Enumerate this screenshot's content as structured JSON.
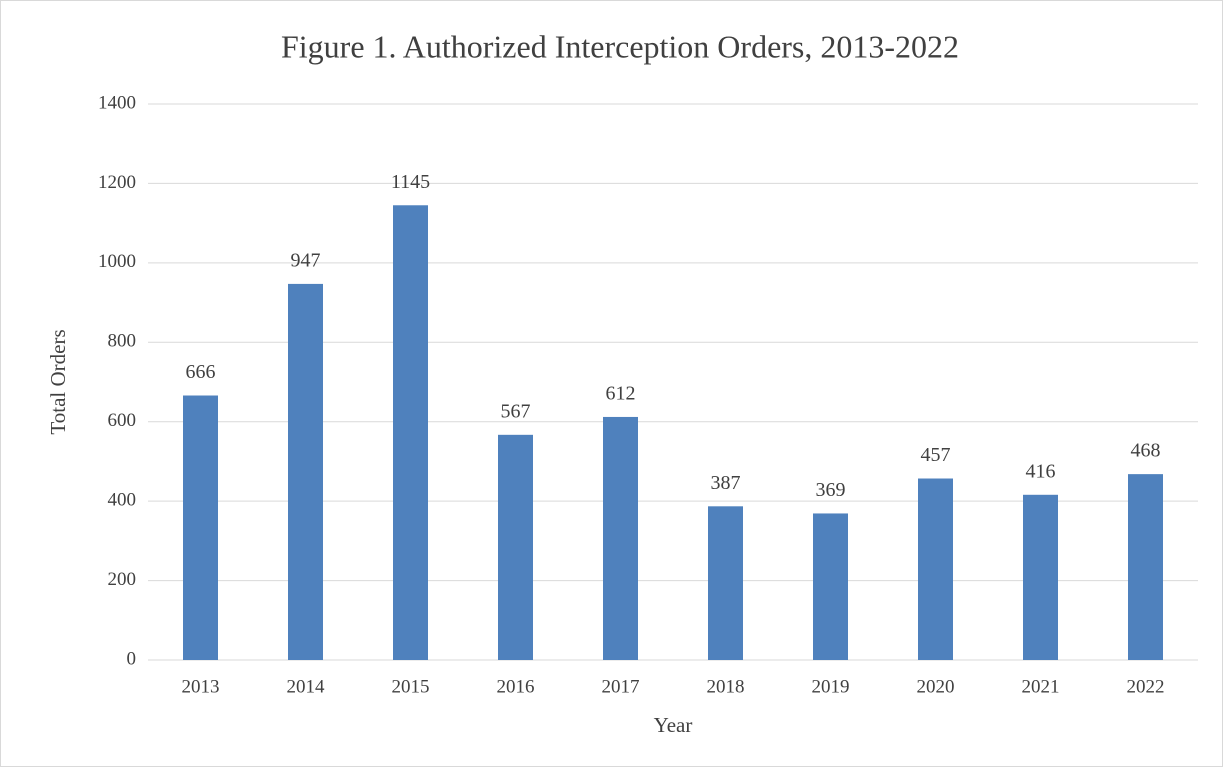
{
  "chart_data": {
    "type": "bar",
    "title": "Figure 1. Authorized Interception Orders, 2013-2022",
    "xlabel": "Year",
    "ylabel": "Total Orders",
    "categories": [
      "2013",
      "2014",
      "2015",
      "2016",
      "2017",
      "2018",
      "2019",
      "2020",
      "2021",
      "2022"
    ],
    "values": [
      666,
      947,
      1145,
      567,
      612,
      387,
      369,
      457,
      416,
      468
    ],
    "color": "#4f81bd",
    "ylim": [
      0,
      1400
    ],
    "yticks": [
      0,
      200,
      400,
      600,
      800,
      1000,
      1200,
      1400
    ],
    "grid": true
  }
}
